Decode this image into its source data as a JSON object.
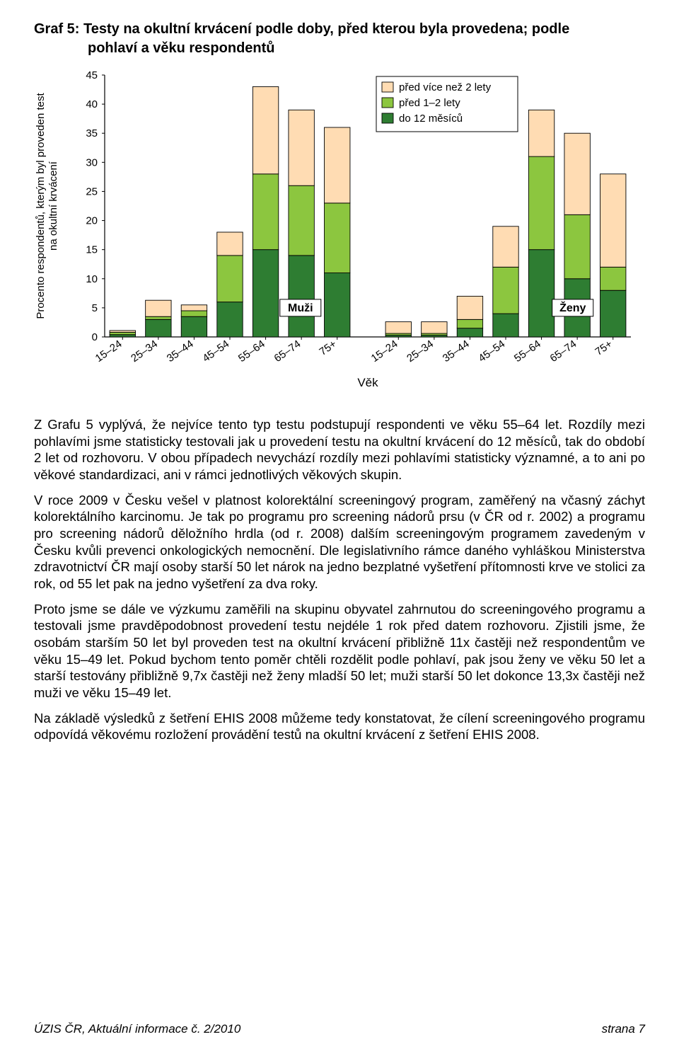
{
  "title_line1": "Graf 5: Testy na okultní krvácení podle doby, před kterou byla provedena; podle",
  "title_line2": "pohlaví a věku respondentů",
  "chart": {
    "type": "stacked-bar",
    "ylabel": "Procento respondentů, kterým byl proveden test\nna okultní krvácení",
    "xlabel": "Věk",
    "ylim": [
      0,
      45
    ],
    "ytick_step": 5,
    "yticks": [
      "0",
      "5",
      "10",
      "15",
      "20",
      "25",
      "30",
      "35",
      "40",
      "45"
    ],
    "categories": [
      "15–24",
      "25–34",
      "35–44",
      "45–54",
      "55–64",
      "65–74",
      "75+"
    ],
    "group_labels": [
      "Muži",
      "Ženy"
    ],
    "legend": {
      "items": [
        {
          "label": "před více než 2 lety",
          "fill": "#ffdcb3",
          "stroke": "#000000"
        },
        {
          "label": "před 1–2 lety",
          "fill": "#8cc63f",
          "stroke": "#000000"
        },
        {
          "label": "do 12 měsíců",
          "fill": "#2e7d32",
          "stroke": "#000000"
        }
      ],
      "box_stroke": "#000000",
      "box_fill": "#ffffff"
    },
    "colors": {
      "seg_bottom": "#2e7d32",
      "seg_mid": "#8cc63f",
      "seg_top": "#ffdcb3",
      "bar_stroke": "#000000",
      "axis": "#000000",
      "grid": "#000000",
      "bg": "#ffffff",
      "group_box_fill": "#ffffff",
      "group_box_stroke": "#000000"
    },
    "bar_width": 0.72,
    "label_fontsize": 15,
    "tick_fontsize": 15,
    "series": {
      "Muži": [
        {
          "do12": 0.4,
          "p12": 0.4,
          "vice2": 0.3
        },
        {
          "do12": 3.0,
          "p12": 0.5,
          "vice2": 2.8
        },
        {
          "do12": 3.5,
          "p12": 1.0,
          "vice2": 1.0
        },
        {
          "do12": 6.0,
          "p12": 8.0,
          "vice2": 4.0
        },
        {
          "do12": 15.0,
          "p12": 13.0,
          "vice2": 15.0
        },
        {
          "do12": 14.0,
          "p12": 12.0,
          "vice2": 13.0
        },
        {
          "do12": 11.0,
          "p12": 12.0,
          "vice2": 13.0
        }
      ],
      "Ženy": [
        {
          "do12": 0.3,
          "p12": 0.3,
          "vice2": 2.0
        },
        {
          "do12": 0.3,
          "p12": 0.3,
          "vice2": 2.0
        },
        {
          "do12": 1.5,
          "p12": 1.5,
          "vice2": 4.0
        },
        {
          "do12": 4.0,
          "p12": 8.0,
          "vice2": 7.0
        },
        {
          "do12": 15.0,
          "p12": 16.0,
          "vice2": 8.0
        },
        {
          "do12": 10.0,
          "p12": 11.0,
          "vice2": 14.0
        },
        {
          "do12": 8.0,
          "p12": 4.0,
          "vice2": 16.0
        }
      ]
    }
  },
  "paragraphs": [
    "Z Grafu 5 vyplývá, že nejvíce tento typ testu podstupují respondenti ve věku 55–64 let. Rozdíly mezi pohlavími jsme statisticky testovali jak u provedení testu na okultní krvácení do 12 měsíců, tak do období 2 let od rozhovoru. V obou případech nevychází rozdíly mezi pohlavími statisticky významné, a to ani po věkové standardizaci, ani v rámci jednotlivých věkových skupin.",
    "V roce 2009 v Česku vešel v platnost kolorektální screeningový program, zaměřený na včasný záchyt kolorektálního karcinomu. Je tak po programu pro screening nádorů prsu (v ČR od r. 2002) a programu pro screening nádorů děložního hrdla (od r. 2008) dalším screeningovým programem zavedeným v Česku kvůli prevenci onkologických nemocnění. Dle legislativního rámce daného vyhláškou Ministerstva zdravotnictví ČR mají osoby starší 50 let nárok na jedno bezplatné vyšetření přítomnosti krve ve stolici za rok, od 55 let pak na jedno vyšetření za dva roky.",
    "Proto jsme se dále ve výzkumu zaměřili na skupinu obyvatel zahrnutou do screeningového programu a testovali jsme pravděpodobnost provedení testu nejdéle 1 rok před datem rozhovoru. Zjistili jsme, že osobám starším 50 let byl proveden test na okultní krvácení přibližně 11x častěji než respondentům ve věku 15–49 let. Pokud bychom tento poměr chtěli rozdělit podle pohlaví, pak jsou ženy ve věku 50 let a starší testovány přibližně 9,7x častěji než ženy mladší 50 let; muži starší 50 let dokonce 13,3x častěji než muži ve věku 15–49 let.",
    "Na základě výsledků z šetření EHIS 2008 můžeme tedy konstatovat, že cílení screeningového programu odpovídá věkovému rozložení provádění testů na okultní krvácení z šetření EHIS 2008."
  ],
  "footer_left": "ÚZIS ČR, Aktuální informace č. 2/2010",
  "footer_right": "strana 7"
}
